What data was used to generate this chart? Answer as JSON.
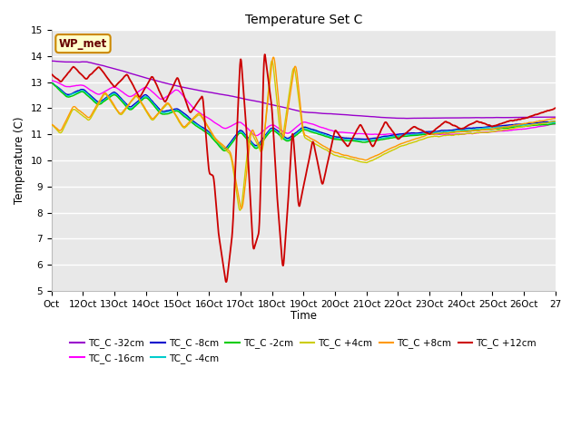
{
  "title": "Temperature Set C",
  "xlabel": "Time",
  "ylabel": "Temperature (C)",
  "ylim": [
    5.0,
    15.0
  ],
  "yticks": [
    5.0,
    6.0,
    7.0,
    8.0,
    9.0,
    10.0,
    11.0,
    12.0,
    13.0,
    14.0,
    15.0
  ],
  "xtick_labels": [
    "Oct",
    "12Oct",
    "13Oct",
    "14Oct",
    "15Oct",
    "16Oct",
    "17Oct",
    "18Oct",
    "19Oct",
    "20Oct",
    "21Oct",
    "22Oct",
    "23Oct",
    "24Oct",
    "25Oct",
    "26Oct",
    "27"
  ],
  "wp_met_label": "WP_met",
  "legend_entries": [
    {
      "label": "TC_C -32cm",
      "color": "#9900cc"
    },
    {
      "label": "TC_C -16cm",
      "color": "#ff00ff"
    },
    {
      "label": "TC_C -8cm",
      "color": "#0000cc"
    },
    {
      "label": "TC_C -4cm",
      "color": "#00cccc"
    },
    {
      "label": "TC_C -2cm",
      "color": "#00cc00"
    },
    {
      "label": "TC_C +4cm",
      "color": "#cccc00"
    },
    {
      "label": "TC_C +8cm",
      "color": "#ff9900"
    },
    {
      "label": "TC_C +12cm",
      "color": "#cc0000"
    }
  ],
  "plot_bg_color": "#e8e8e8",
  "figsize": [
    6.4,
    4.8
  ],
  "dpi": 100
}
